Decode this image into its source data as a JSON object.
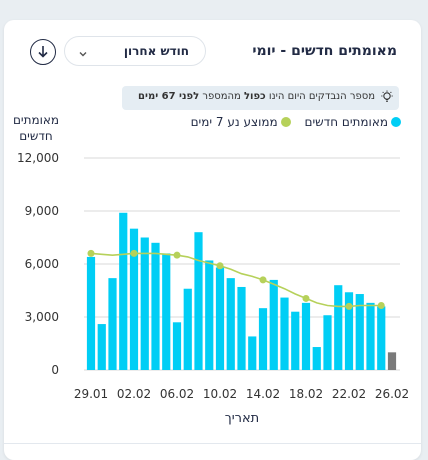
{
  "card": {
    "title": "מאומתים חדשים - יומי",
    "period_select": "חודש אחרון"
  },
  "note": {
    "prefix": "מספר הנבדקים היום הינו ",
    "bold1": "כפול",
    "middle": " מהמספר ",
    "bold2": "לפני 67 ימים"
  },
  "colors": {
    "bars": "#00cef5",
    "bar_latest": "#7a7a7a",
    "avg_line": "#b6d15a",
    "grid": "#d9d9d9"
  },
  "chart_data": {
    "type": "bar",
    "ylabel_lines": [
      "מאומתים",
      "חדשים"
    ],
    "xlabel": "תאריך",
    "ylim": [
      0,
      12000
    ],
    "yticks": [
      0,
      3000,
      6000,
      9000,
      12000
    ],
    "ytick_labels": [
      "0",
      "3,000",
      "6,000",
      "9,000",
      "12,000"
    ],
    "x_tick_labels": [
      {
        "index": 0,
        "label": "29.01"
      },
      {
        "index": 4,
        "label": "02.02"
      },
      {
        "index": 8,
        "label": "06.02"
      },
      {
        "index": 12,
        "label": "10.02"
      },
      {
        "index": 16,
        "label": "14.02"
      },
      {
        "index": 20,
        "label": "18.02"
      },
      {
        "index": 24,
        "label": "22.02"
      },
      {
        "index": 28,
        "label": "26.02"
      }
    ],
    "grid": "horizontal",
    "legend": "top-right",
    "series": [
      {
        "name": "מאומתים חדשים",
        "kind": "bar",
        "values": [
          6400,
          2600,
          5200,
          8900,
          8000,
          7500,
          7200,
          6600,
          2700,
          4600,
          7800,
          6200,
          5800,
          5200,
          4700,
          1900,
          3500,
          5100,
          4100,
          3300,
          3800,
          1300,
          3100,
          4800,
          4400,
          4300,
          3800,
          3600,
          1000
        ]
      },
      {
        "name": "ממוצע נע 7 ימים",
        "kind": "line",
        "values": [
          6600,
          6550,
          6500,
          6550,
          6600,
          6600,
          6600,
          6550,
          6500,
          6400,
          6200,
          6050,
          5900,
          5700,
          5450,
          5300,
          5100,
          4850,
          4600,
          4300,
          4050,
          3800,
          3650,
          3600,
          3600,
          3650,
          3650,
          3650,
          null
        ],
        "marker_indices": [
          0,
          4,
          8,
          12,
          16,
          20,
          24,
          27
        ]
      }
    ]
  }
}
